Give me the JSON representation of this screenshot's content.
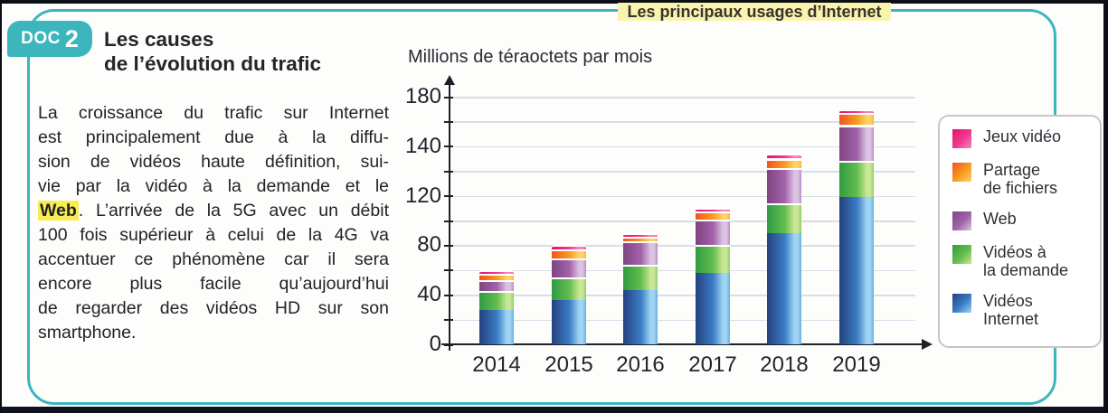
{
  "doc": {
    "badge": {
      "label": "DOC",
      "number": "2"
    },
    "title_lines": [
      "Les causes",
      "de l’évolution du trafic"
    ],
    "body_lines": [
      {
        "parts": [
          {
            "text": "La croissance du trafic sur Internet"
          }
        ]
      },
      {
        "parts": [
          {
            "text": "est principalement due à la diffu-"
          }
        ]
      },
      {
        "parts": [
          {
            "text": "sion de vidéos haute définition, sui-"
          }
        ]
      },
      {
        "parts": [
          {
            "text": "vie par la vidéo à la demande et le"
          }
        ]
      },
      {
        "parts": [
          {
            "text": "Web",
            "highlight": true
          },
          {
            "text": ". L’arrivée de la 5G avec un débit"
          }
        ]
      },
      {
        "parts": [
          {
            "text": "100 fois supérieur à celui de la 4G va"
          }
        ]
      },
      {
        "parts": [
          {
            "text": "accentuer ce phénomène car il sera"
          }
        ]
      },
      {
        "parts": [
          {
            "text": "encore plus facile qu’aujourd’hui"
          }
        ]
      },
      {
        "parts": [
          {
            "text": "de regarder des vidéos HD sur son"
          }
        ]
      },
      {
        "parts": [
          {
            "text": "smartphone."
          }
        ],
        "justify": false
      }
    ]
  },
  "chart_data": {
    "type": "bar",
    "stacked": true,
    "title": "Les principaux usages d’Internet",
    "ylabel": "Millions de téraoctets par mois",
    "categories": [
      "2014",
      "2015",
      "2016",
      "2017",
      "2018",
      "2019"
    ],
    "series": [
      {
        "name": "Vidéos Internet",
        "values": [
          28,
          36,
          44,
          58,
          90,
          119
        ]
      },
      {
        "name": "Vidéos à la demande",
        "values": [
          15,
          18,
          20,
          22,
          24,
          15
        ]
      },
      {
        "name": "Web",
        "values": [
          9,
          15,
          19,
          21,
          17,
          23
        ]
      },
      {
        "name": "Partage de fichiers",
        "values": [
          5,
          8,
          4,
          6,
          4,
          10
        ]
      },
      {
        "name": "Jeux vidéo",
        "values": [
          3,
          3,
          3,
          3,
          2,
          3
        ]
      }
    ],
    "y_tick_labels_top_to_bottom": [
      "180",
      "140",
      "120",
      "80",
      "40",
      "0"
    ],
    "gridline_count": 11,
    "grid": true,
    "legend_position": "right",
    "legend_items_top_to_bottom": [
      {
        "series": "Jeux vidéo",
        "lines": [
          "Jeux vidéo"
        ]
      },
      {
        "series": "Partage de fichiers",
        "lines": [
          "Partage",
          "de fichiers"
        ]
      },
      {
        "series": "Web",
        "lines": [
          "Web"
        ]
      },
      {
        "series": "Vidéos à la demande",
        "lines": [
          "Vidéos à",
          "la demande"
        ]
      },
      {
        "series": "Vidéos Internet",
        "lines": [
          "Vidéos",
          "Internet"
        ]
      }
    ]
  },
  "colors": {
    "accent_teal": "#3cb5bd",
    "title_highlight_yellow": "#faf3ae",
    "term_highlight_yellow": "#f7ec52",
    "gridline": "#d9dde7",
    "series_gradients": {
      "Vidéos Internet": [
        "#24407e",
        "#3b7ec6",
        "#9fd4f3",
        "#5fb0e6"
      ],
      "Vidéos à la demande": [
        "#2f9b42",
        "#64bd4e",
        "#c9e795",
        "#8fcf64"
      ],
      "Web": [
        "#7f4480",
        "#a263ab",
        "#dcc3e3",
        "#b88cc6"
      ],
      "Partage de fichiers": [
        "#f0551f",
        "#f89c22",
        "#fdd466",
        "#fbb23a"
      ],
      "Jeux vidéo": [
        "#e90f6d",
        "#ee3b8f",
        "#f685ba",
        "#f05ca4"
      ]
    }
  }
}
